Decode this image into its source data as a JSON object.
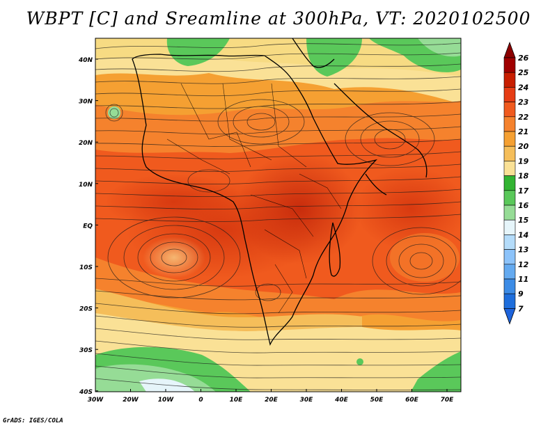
{
  "title": "WBPT [C] and Sreamline at 300hPa, VT: 2020102500",
  "footer": "GrADS: IGES/COLA",
  "map": {
    "lat_labels": [
      "40N",
      "30N",
      "20N",
      "10N",
      "EQ",
      "10S",
      "20S",
      "30S",
      "40S"
    ],
    "lon_labels": [
      "30W",
      "20W",
      "10W",
      "0",
      "10E",
      "20E",
      "30E",
      "40E",
      "50E",
      "60E",
      "70E"
    ]
  },
  "colorbar": {
    "labels": [
      "26",
      "25",
      "24",
      "23",
      "22",
      "21",
      "20",
      "19",
      "18",
      "17",
      "16",
      "15",
      "14",
      "13",
      "12",
      "11",
      "9",
      "7"
    ],
    "colors": [
      "#a00000",
      "#c81e00",
      "#e63c14",
      "#f05a1e",
      "#f5822d",
      "#f5a032",
      "#f5be5a",
      "#fae196",
      "#32b432",
      "#5ac85a",
      "#96dc96",
      "#e6f5fa",
      "#b4dcfa",
      "#8cc3fa",
      "#64aaf0",
      "#3c8ce6",
      "#1e6edc"
    ],
    "top_arrow_color": "#8c0000",
    "bottom_arrow_color": "#1e64dc"
  }
}
